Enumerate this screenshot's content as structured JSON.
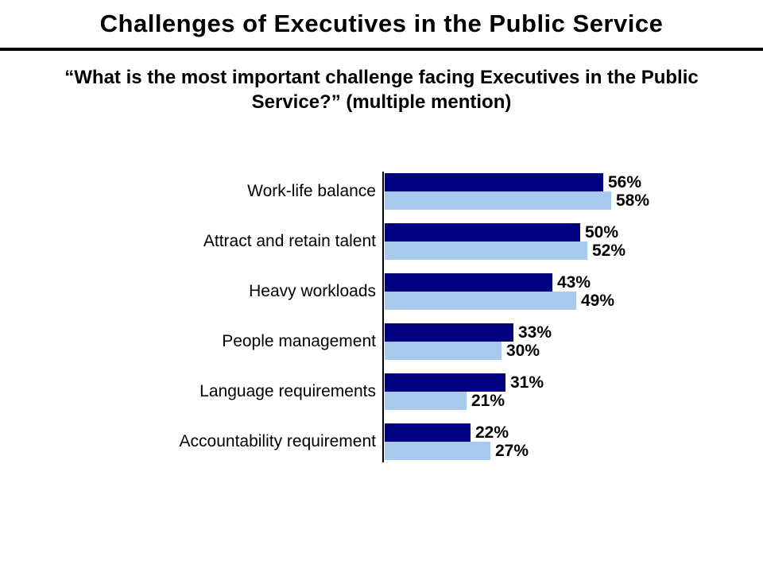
{
  "title": "Challenges of Executives in the Public Service",
  "subtitle": "“What is the most important challenge facing Executives in the Public Service?” (multiple mention)",
  "chart_data": {
    "type": "bar",
    "orientation": "horizontal",
    "title": "Challenges of Executives in the Public Service",
    "subtitle": "“What is the most important challenge facing Executives in the Public Service?” (multiple mention)",
    "categories": [
      "Work-life balance",
      "Attract and retain talent",
      "Heavy workloads",
      "People management",
      "Language requirements",
      "Accountability requirement"
    ],
    "series": [
      {
        "name": "dark-blue-series",
        "color": "#000080",
        "values": [
          56,
          50,
          43,
          33,
          31,
          22
        ]
      },
      {
        "name": "light-blue-series",
        "color": "#A6C9EC",
        "values": [
          58,
          52,
          49,
          30,
          21,
          27
        ]
      }
    ],
    "value_suffix": "%",
    "xlim": [
      0,
      100
    ],
    "grid": false,
    "legend": "none",
    "data_labels": true,
    "axis_color": "#000000"
  }
}
